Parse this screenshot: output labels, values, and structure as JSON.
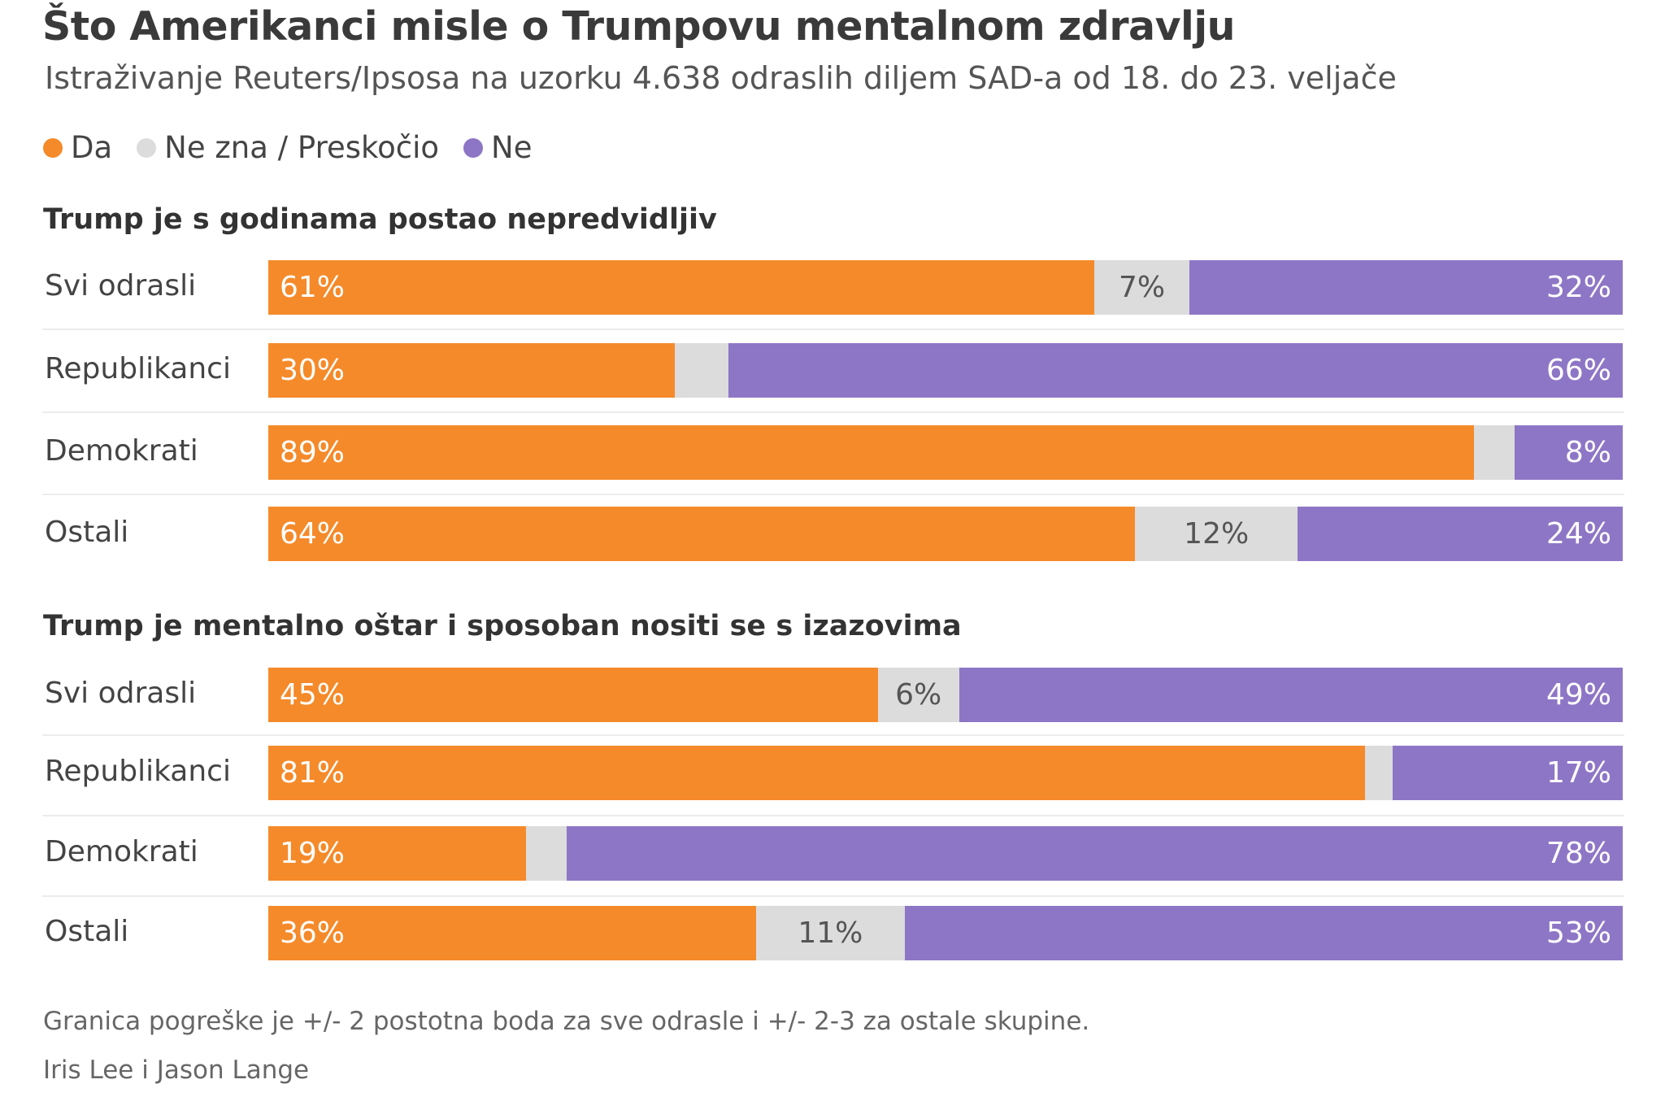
{
  "title": "Što Amerikanci misle o Trumpovu mentalnom zdravlju",
  "subtitle": "Istraživanje Reuters/Ipsosa na uzorku 4.638 odraslih diljem SAD-a od 18. do 23. veljače",
  "legend": [
    {
      "label": "Da",
      "color": "#f58a2a"
    },
    {
      "label": "Ne zna / Preskočio",
      "color": "#dcdcdc"
    },
    {
      "label": "Ne",
      "color": "#8e76c6"
    }
  ],
  "footnote": "Granica pogreške je +/- 2 postotna boda za sve odrasle i +/- 2-3 za ostale skupine.",
  "credit": "Iris Lee i Jason Lange",
  "chart_data": [
    {
      "type": "bar",
      "stacked": true,
      "orientation": "horizontal",
      "title": "Trump je s godinama postao nepredvidljiv",
      "categories": [
        "Svi odrasli",
        "Republikanci",
        "Demokrati",
        "Ostali"
      ],
      "series": [
        {
          "name": "Da",
          "values": [
            61,
            30,
            89,
            64
          ],
          "labels": [
            "61%",
            "30%",
            "89%",
            "64%"
          ]
        },
        {
          "name": "Ne zna / Preskočio",
          "values": [
            7,
            4,
            3,
            12
          ],
          "labels": [
            "7%",
            "",
            "",
            "12%"
          ]
        },
        {
          "name": "Ne",
          "values": [
            32,
            66,
            8,
            24
          ],
          "labels": [
            "32%",
            "66%",
            "8%",
            "24%"
          ]
        }
      ],
      "xlim": [
        0,
        100
      ]
    },
    {
      "type": "bar",
      "stacked": true,
      "orientation": "horizontal",
      "title": "Trump je mentalno oštar i sposoban nositi se s izazovima",
      "categories": [
        "Svi odrasli",
        "Republikanci",
        "Demokrati",
        "Ostali"
      ],
      "series": [
        {
          "name": "Da",
          "values": [
            45,
            81,
            19,
            36
          ],
          "labels": [
            "45%",
            "81%",
            "19%",
            "36%"
          ]
        },
        {
          "name": "Ne zna / Preskočio",
          "values": [
            6,
            2,
            3,
            11
          ],
          "labels": [
            "6%",
            "",
            "",
            "11%"
          ]
        },
        {
          "name": "Ne",
          "values": [
            49,
            17,
            78,
            53
          ],
          "labels": [
            "49%",
            "17%",
            "78%",
            "53%"
          ]
        }
      ],
      "xlim": [
        0,
        100
      ]
    }
  ]
}
